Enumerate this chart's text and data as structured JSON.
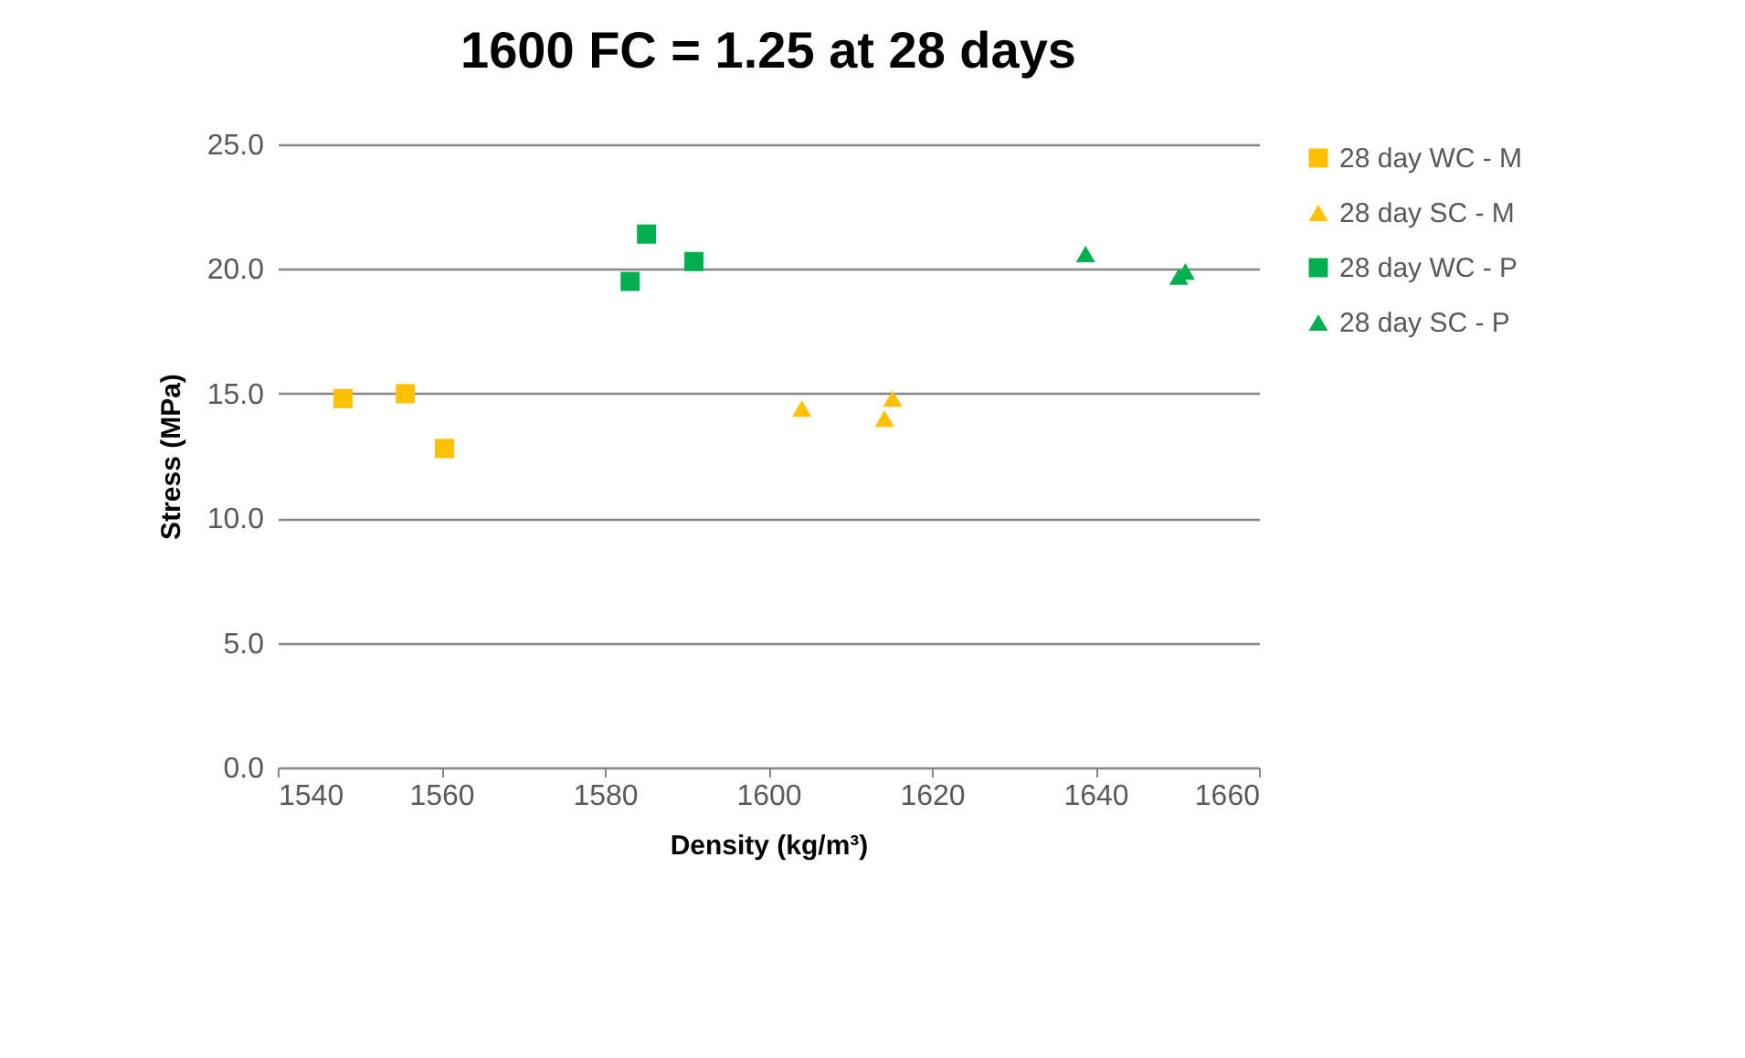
{
  "chart_data": {
    "type": "scatter",
    "title": "1600 FC = 1.25 at 28 days",
    "xlabel": "Density (kg/m³)",
    "ylabel": "Stress (MPa)",
    "xlim": [
      1540,
      1660
    ],
    "xticks": [
      1540,
      1560,
      1580,
      1600,
      1620,
      1640,
      1660
    ],
    "ylim": [
      0,
      25
    ],
    "yticks": [
      {
        "value": 0,
        "label": "0.0"
      },
      {
        "value": 5,
        "label": "5.0"
      },
      {
        "value": 10,
        "label": "10.0"
      },
      {
        "value": 15,
        "label": "15.0"
      },
      {
        "value": 20,
        "label": "20.0"
      },
      {
        "value": 25,
        "label": "25.0"
      }
    ],
    "grid": "y",
    "legend": "right",
    "series": [
      {
        "name": "28 day WC - M",
        "color": "#ffc000",
        "marker": "square",
        "x": [
          1548.0,
          1555.6,
          1560.4
        ],
        "values": [
          14.8,
          15.0,
          12.8
        ]
      },
      {
        "name": "28 day SC - M",
        "color": "#ffc000",
        "marker": "triangle",
        "x": [
          1604.1,
          1615.2,
          1614.2
        ],
        "values": [
          14.4,
          14.8,
          14.0
        ]
      },
      {
        "name": "28 day WC - P",
        "color": "#00b050",
        "marker": "square",
        "x": [
          1585.1,
          1583.1,
          1590.9
        ],
        "values": [
          21.4,
          19.5,
          20.3
        ]
      },
      {
        "name": "28 day SC - P",
        "color": "#00b050",
        "marker": "triangle",
        "x": [
          1638.8,
          1651.0,
          1650.2
        ],
        "values": [
          20.6,
          19.9,
          19.7
        ]
      }
    ]
  }
}
